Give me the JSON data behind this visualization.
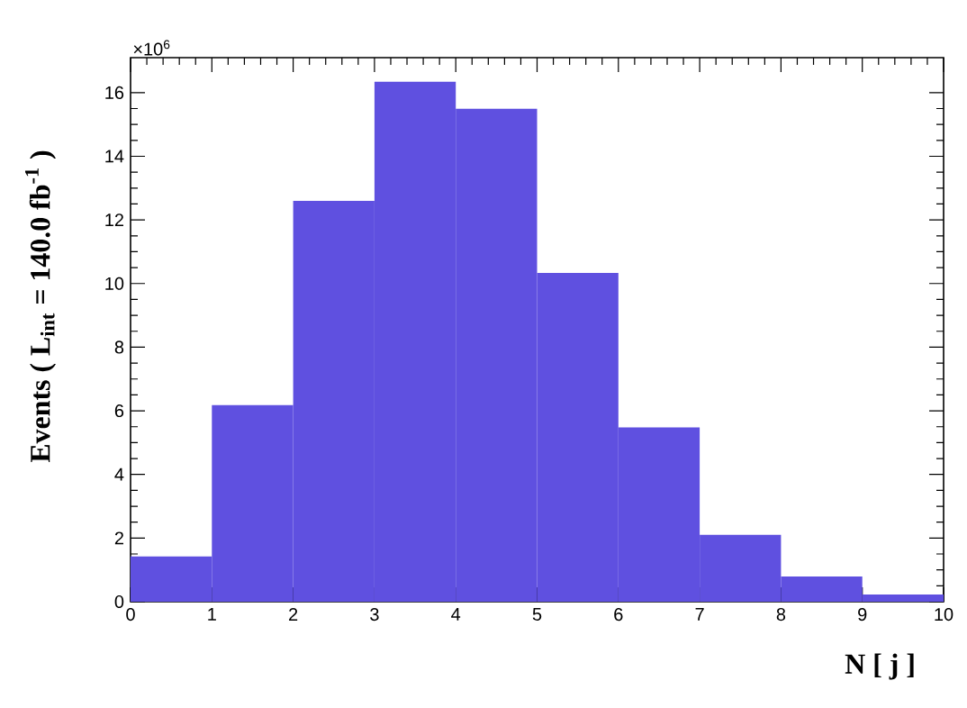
{
  "chart_data": {
    "type": "histogram",
    "xlabel": "N [ j ]",
    "ylabel": "Events  ( L$_{int}$ = 140.0 fb$^{-1}$ )",
    "annotations": [
      "×10$^{6}$"
    ],
    "bins": [
      0,
      1,
      2,
      3,
      4,
      5,
      6,
      7,
      8,
      9,
      10
    ],
    "values": [
      1.42,
      6.18,
      12.6,
      16.34,
      15.49,
      10.33,
      5.48,
      2.1,
      0.79,
      0.23
    ],
    "color": "#5f50e0",
    "xlim": [
      0,
      10
    ],
    "xticks": [
      0,
      1,
      2,
      3,
      4,
      5,
      6,
      7,
      8,
      9,
      10
    ],
    "ylim": [
      0,
      17.1
    ],
    "yticks": [
      0,
      2,
      4,
      6,
      8,
      10,
      12,
      14,
      16
    ],
    "grid": false
  }
}
